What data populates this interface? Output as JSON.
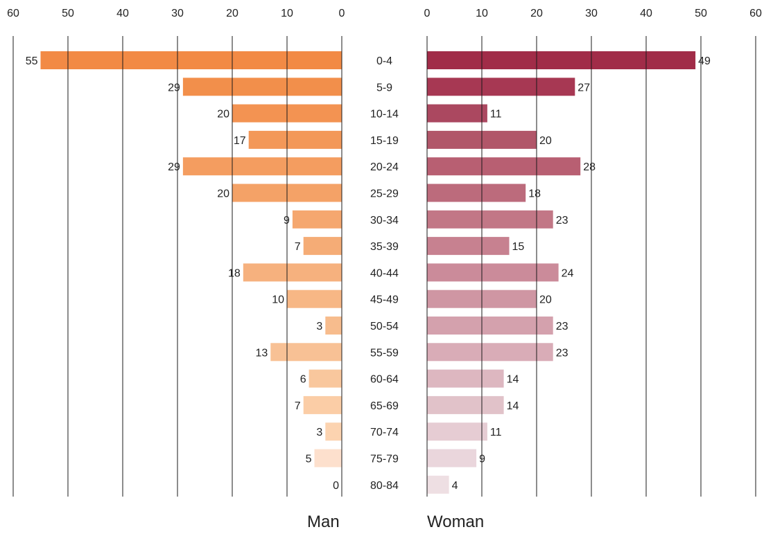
{
  "chart_data": {
    "type": "bar",
    "orientation": "horizontal",
    "layout": "population-pyramid",
    "categories": [
      "0-4",
      "5-9",
      "10-14",
      "15-19",
      "20-24",
      "25-29",
      "30-34",
      "35-39",
      "40-44",
      "45-49",
      "50-54",
      "55-59",
      "60-64",
      "65-69",
      "70-74",
      "75-79",
      "80-84"
    ],
    "series": [
      {
        "name": "Man",
        "side": "left",
        "values": [
          55,
          29,
          20,
          17,
          29,
          20,
          9,
          7,
          18,
          10,
          3,
          13,
          6,
          7,
          3,
          5,
          0
        ],
        "colors": [
          "#f28a45",
          "#f28f4b",
          "#f39352",
          "#f39859",
          "#f49d60",
          "#f4a267",
          "#f5a76f",
          "#f5ac76",
          "#f6b17e",
          "#f7b785",
          "#f7bc8d",
          "#f8c195",
          "#f9c79d",
          "#fbcda6",
          "#fcd3b0",
          "#fde0cd",
          "#fde5d6"
        ]
      },
      {
        "name": "Woman",
        "side": "right",
        "values": [
          49,
          27,
          11,
          20,
          28,
          18,
          23,
          15,
          24,
          20,
          23,
          23,
          14,
          14,
          11,
          9,
          4
        ],
        "colors": [
          "#a12c48",
          "#a73853",
          "#ab4860",
          "#b15669",
          "#b85f72",
          "#bc6b7c",
          "#c27786",
          "#c78190",
          "#cb8b9a",
          "#cf96a3",
          "#d4a1ad",
          "#d9acb7",
          "#ddb7c0",
          "#e1c2c9",
          "#e6ccd3",
          "#ead6dc",
          "#eedfe3"
        ]
      }
    ],
    "xlim": [
      0,
      60
    ],
    "ticks": [
      0,
      10,
      20,
      30,
      40,
      50,
      60
    ],
    "ticks_left": [
      "60",
      "50",
      "40",
      "30",
      "20",
      "10",
      "0"
    ],
    "ticks_right": [
      "0",
      "10",
      "20",
      "30",
      "40",
      "50",
      "60"
    ],
    "grid": true,
    "legend_position": "bottom"
  },
  "legend": {
    "man": "Man",
    "woman": "Woman"
  }
}
